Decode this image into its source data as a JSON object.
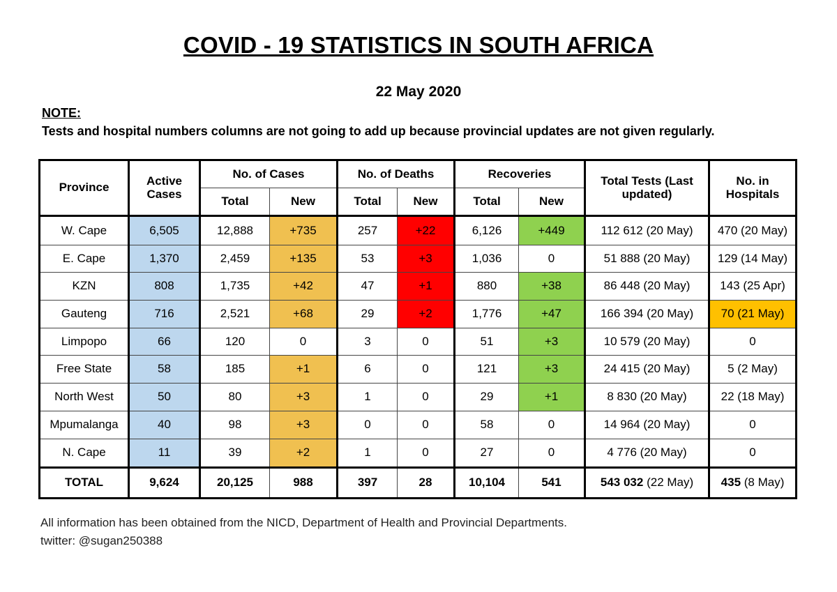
{
  "title": "COVID - 19 STATISTICS IN SOUTH AFRICA",
  "date": "22 May 2020",
  "note_label": "NOTE:",
  "note_text": "Tests and hospital numbers columns are not going to add up because provincial updates are not given regularly.",
  "headers": {
    "province": "Province",
    "active": "Active Cases",
    "cases": "No. of Cases",
    "deaths": "No. of Deaths",
    "recoveries": "Recoveries",
    "tests": "Total Tests (Last updated)",
    "hospitals": "No. in Hospitals",
    "total": "Total",
    "new": "New"
  },
  "highlight_colors": {
    "active": "#bdd7ee",
    "new_cases": "#f0c050",
    "new_deaths": "#ff0000",
    "new_recoveries": "#8fd14f",
    "hospital_highlight": "#ffc000"
  },
  "rows": [
    {
      "province": "W. Cape",
      "active": "6,505",
      "cases_total": "12,888",
      "cases_new": "+735",
      "cases_new_hl": true,
      "deaths_total": "257",
      "deaths_new": "+22",
      "deaths_new_hl": true,
      "rec_total": "6,126",
      "rec_new": "+449",
      "rec_new_hl": true,
      "tests": "112 612 (20 May)",
      "hospitals": "470 (20 May)",
      "hosp_hl": false
    },
    {
      "province": "E. Cape",
      "active": "1,370",
      "cases_total": "2,459",
      "cases_new": "+135",
      "cases_new_hl": true,
      "deaths_total": "53",
      "deaths_new": "+3",
      "deaths_new_hl": true,
      "rec_total": "1,036",
      "rec_new": "0",
      "rec_new_hl": false,
      "tests": "51 888 (20 May)",
      "hospitals": "129 (14 May)",
      "hosp_hl": false
    },
    {
      "province": "KZN",
      "active": "808",
      "cases_total": "1,735",
      "cases_new": "+42",
      "cases_new_hl": true,
      "deaths_total": "47",
      "deaths_new": "+1",
      "deaths_new_hl": true,
      "rec_total": "880",
      "rec_new": "+38",
      "rec_new_hl": true,
      "tests": "86 448 (20 May)",
      "hospitals": "143 (25 Apr)",
      "hosp_hl": false
    },
    {
      "province": "Gauteng",
      "active": "716",
      "cases_total": "2,521",
      "cases_new": "+68",
      "cases_new_hl": true,
      "deaths_total": "29",
      "deaths_new": "+2",
      "deaths_new_hl": true,
      "rec_total": "1,776",
      "rec_new": "+47",
      "rec_new_hl": true,
      "tests": "166 394 (20 May)",
      "hospitals": "70 (21 May)",
      "hosp_hl": true
    },
    {
      "province": "Limpopo",
      "active": "66",
      "cases_total": "120",
      "cases_new": "0",
      "cases_new_hl": false,
      "deaths_total": "3",
      "deaths_new": "0",
      "deaths_new_hl": false,
      "rec_total": "51",
      "rec_new": "+3",
      "rec_new_hl": true,
      "tests": "10 579 (20 May)",
      "hospitals": "0",
      "hosp_hl": false
    },
    {
      "province": "Free State",
      "active": "58",
      "cases_total": "185",
      "cases_new": "+1",
      "cases_new_hl": true,
      "deaths_total": "6",
      "deaths_new": "0",
      "deaths_new_hl": false,
      "rec_total": "121",
      "rec_new": "+3",
      "rec_new_hl": true,
      "tests": "24 415 (20 May)",
      "hospitals": "5 (2 May)",
      "hosp_hl": false
    },
    {
      "province": "North West",
      "active": "50",
      "cases_total": "80",
      "cases_new": "+3",
      "cases_new_hl": true,
      "deaths_total": "1",
      "deaths_new": "0",
      "deaths_new_hl": false,
      "rec_total": "29",
      "rec_new": "+1",
      "rec_new_hl": true,
      "tests": "8 830 (20 May)",
      "hospitals": "22 (18 May)",
      "hosp_hl": false
    },
    {
      "province": "Mpumalanga",
      "active": "40",
      "cases_total": "98",
      "cases_new": "+3",
      "cases_new_hl": true,
      "deaths_total": "0",
      "deaths_new": "0",
      "deaths_new_hl": false,
      "rec_total": "58",
      "rec_new": "0",
      "rec_new_hl": false,
      "tests": "14 964 (20 May)",
      "hospitals": "0",
      "hosp_hl": false
    },
    {
      "province": "N. Cape",
      "active": "11",
      "cases_total": "39",
      "cases_new": "+2",
      "cases_new_hl": true,
      "deaths_total": "1",
      "deaths_new": "0",
      "deaths_new_hl": false,
      "rec_total": "27",
      "rec_new": "0",
      "rec_new_hl": false,
      "tests": "4 776 (20 May)",
      "hospitals": "0",
      "hosp_hl": false
    }
  ],
  "totals": {
    "label": "TOTAL",
    "active": "9,624",
    "cases_total": "20,125",
    "cases_new": "988",
    "deaths_total": "397",
    "deaths_new": "28",
    "rec_total": "10,104",
    "rec_new": "541",
    "tests_value": "543 032",
    "tests_date": "(22 May)",
    "hospitals_value": "435",
    "hospitals_date": "(8 May)"
  },
  "footer": {
    "sources": "All information has been obtained from the NICD, Department of Health and Provincial Departments.",
    "twitter": "twitter: @sugan250388"
  }
}
